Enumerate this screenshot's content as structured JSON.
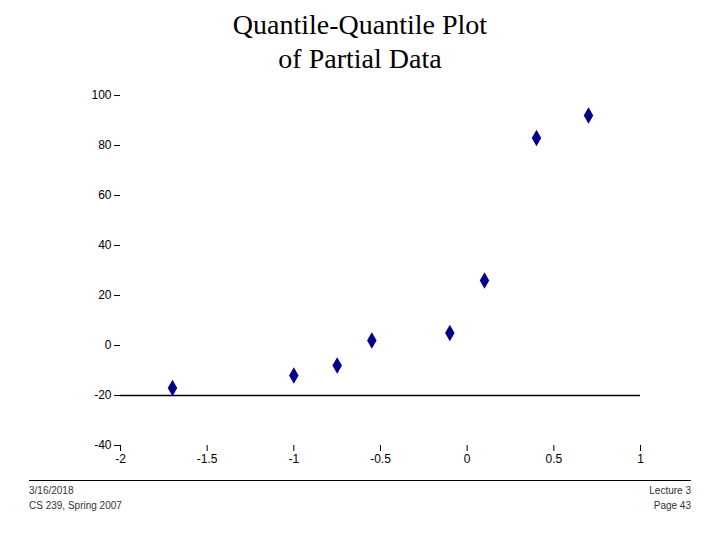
{
  "chart_data": {
    "type": "scatter",
    "title": "Quantile-Quantile Plot\nof Partial Data",
    "x": [
      -1.7,
      -1.0,
      -0.75,
      -0.55,
      -0.1,
      0.1,
      0.4,
      0.7
    ],
    "values": [
      -17,
      -12,
      -8,
      2,
      5,
      26,
      83,
      92
    ],
    "color": "#00008B",
    "marker": "diamond",
    "hline": -20,
    "xlim": [
      -2,
      1
    ],
    "ylim": [
      -40,
      100
    ],
    "xticks": [
      -2,
      -1.5,
      -1,
      -0.5,
      0,
      0.5,
      1
    ],
    "yticks": [
      -40,
      -20,
      0,
      20,
      40,
      60,
      80,
      100
    ],
    "grid": false,
    "annotations": [
      "3/16/2018",
      "CS 239, Spring 2007",
      "Lecture 3",
      "Page 43"
    ]
  }
}
